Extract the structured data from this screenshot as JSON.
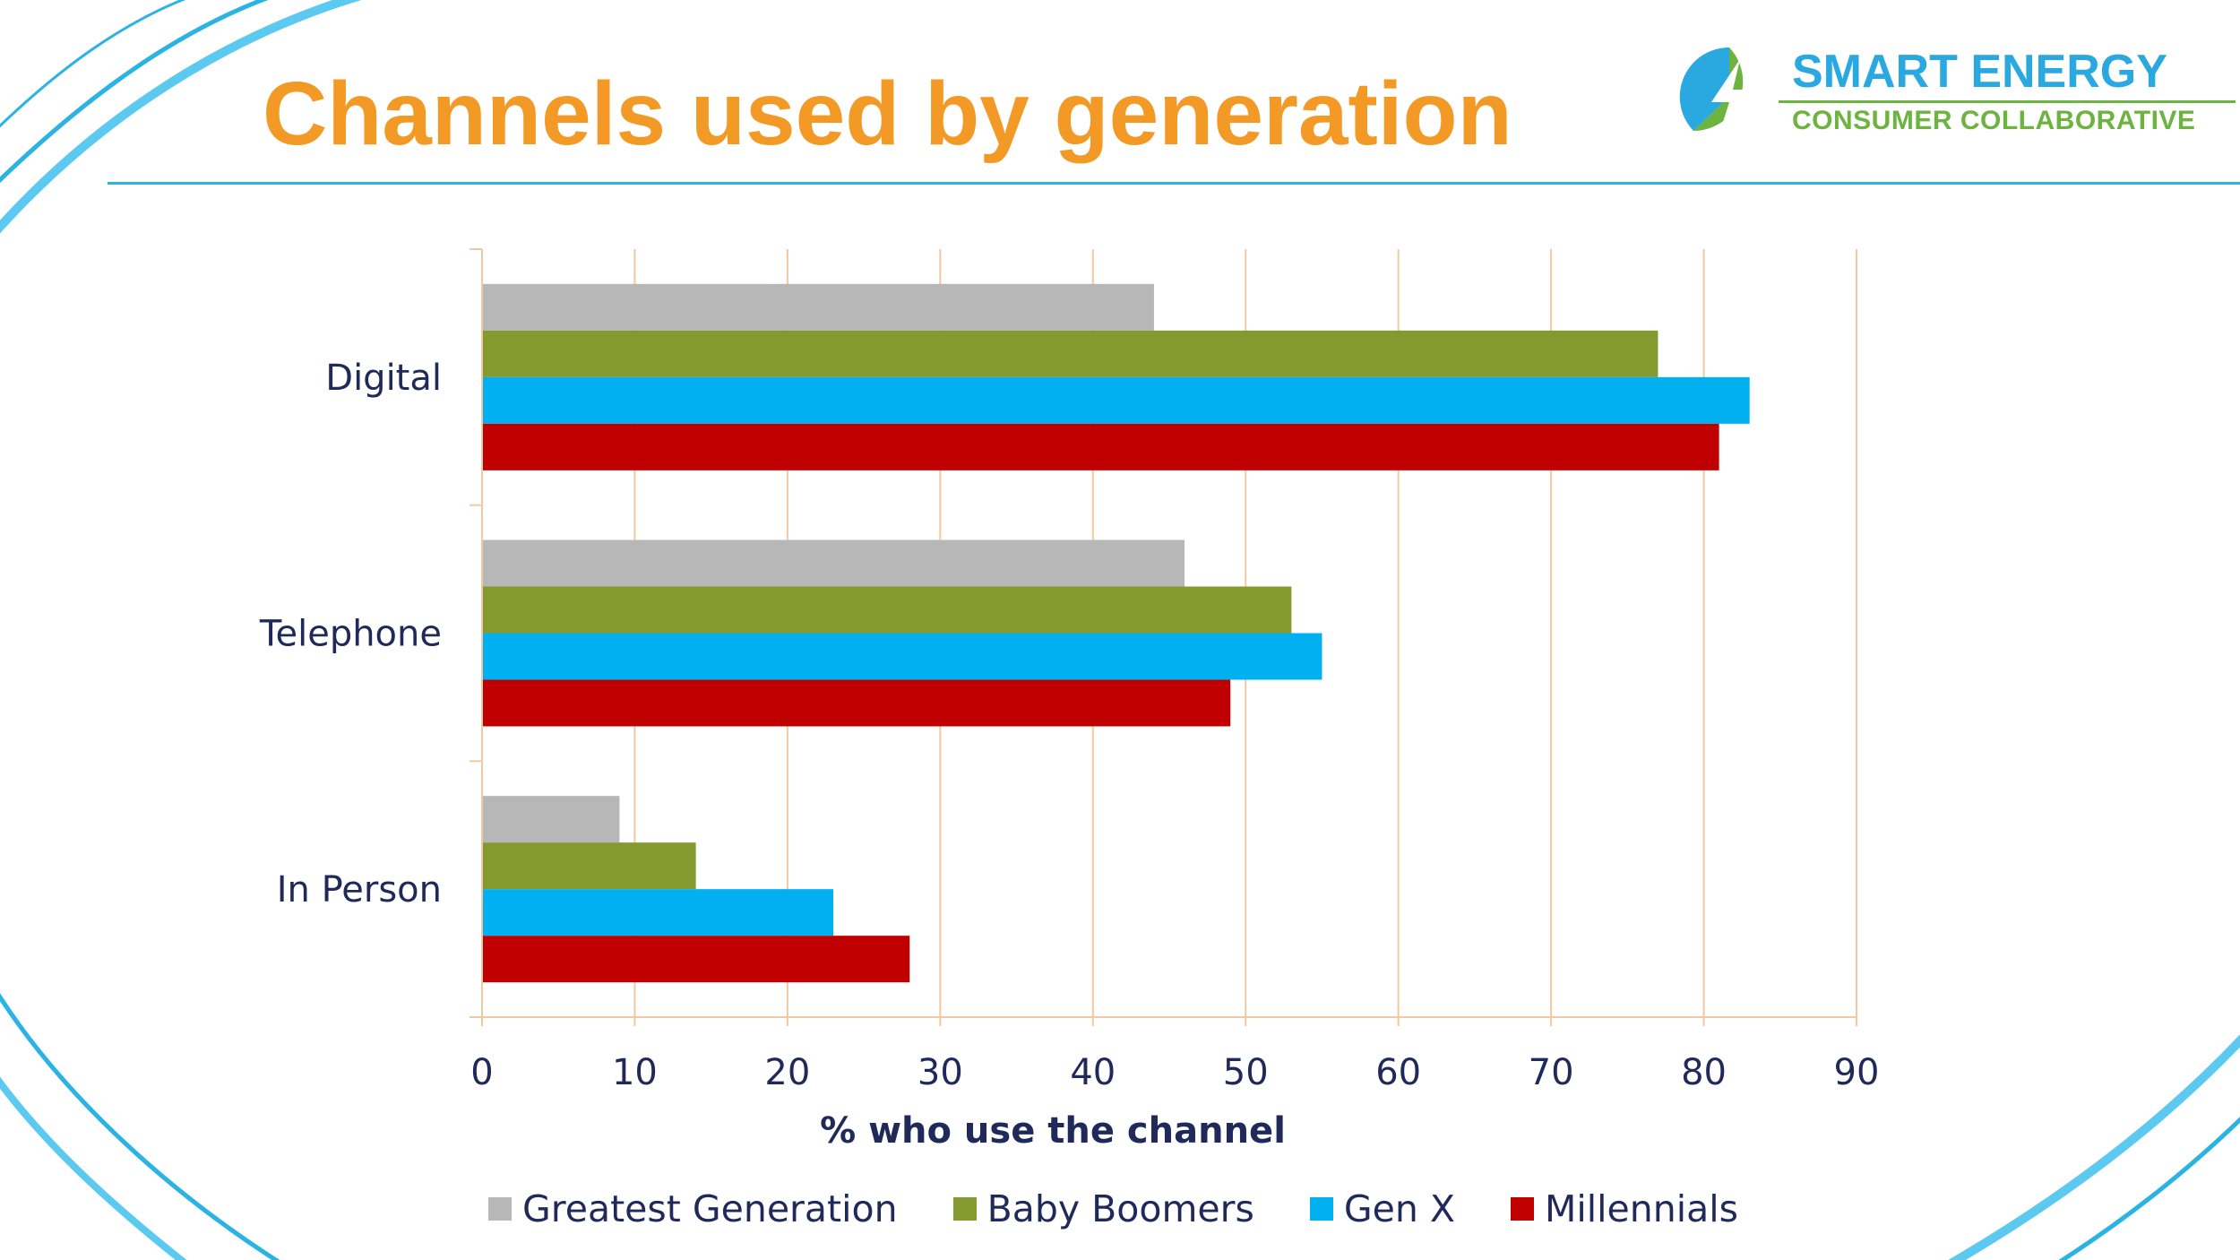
{
  "slide": {
    "title": "Channels used by generation"
  },
  "logo": {
    "line1": "SMART ENERGY",
    "line2": "CONSUMER COLLABORATIVE",
    "icon": "lightning-bolt-icon",
    "colors": {
      "blue": "#29A9E0",
      "green": "#6DB33F"
    }
  },
  "colors": {
    "title": "#F39A26",
    "accent_line": "#2BB3E3",
    "text": "#1F2A5A",
    "grid": "#F0C9A0"
  },
  "chart_data": {
    "type": "bar",
    "orientation": "horizontal",
    "categories": [
      "Digital",
      "Telephone",
      "In Person"
    ],
    "series": [
      {
        "name": "Greatest Generation",
        "color": "#B7B7B7",
        "values": [
          44,
          46,
          9
        ]
      },
      {
        "name": "Baby Boomers",
        "color": "#84992E",
        "values": [
          77,
          53,
          14
        ]
      },
      {
        "name": "Gen X",
        "color": "#00B0F0",
        "values": [
          83,
          55,
          23
        ]
      },
      {
        "name": "Millennials",
        "color": "#C00000",
        "values": [
          81,
          49,
          28
        ]
      }
    ],
    "xlim": [
      0,
      90
    ],
    "xticks": [
      0,
      10,
      20,
      30,
      40,
      50,
      60,
      70,
      80,
      90
    ],
    "xlabel": "% who use the channel",
    "ylabel": "",
    "grid": true,
    "legend": "bottom"
  }
}
